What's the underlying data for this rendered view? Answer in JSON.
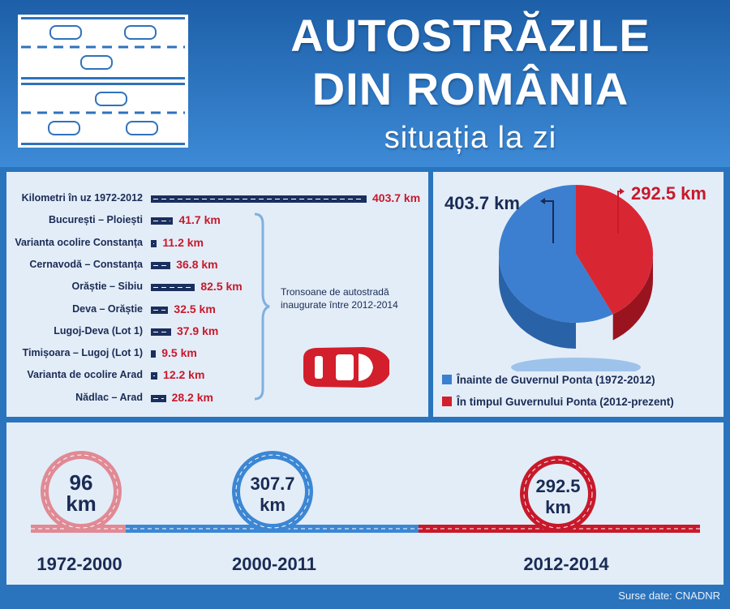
{
  "header": {
    "title_line1": "AUTOSTRĂZILE",
    "title_line2": "DIN ROMÂNIA",
    "subtitle": "situația la zi"
  },
  "colors": {
    "blue": "#3c7fd0",
    "red": "#d21f2b",
    "navy": "#1a2b55",
    "pink": "#e08a95"
  },
  "chart_data": [
    {
      "type": "bar",
      "orientation": "horizontal",
      "categories": [
        "Kilometri în uz 1972-2012",
        "București – Ploiești",
        "Varianta ocolire Constanța",
        "Cernavodă – Constanța",
        "Orăștie – Sibiu",
        "Deva – Orăștie",
        "Lugoj-Deva (Lot 1)",
        "Timișoara – Lugoj (Lot 1)",
        "Varianta de ocolire Arad",
        "Nădlac – Arad"
      ],
      "values": [
        403.7,
        41.7,
        11.2,
        36.8,
        82.5,
        32.5,
        37.9,
        9.5,
        12.2,
        28.2
      ],
      "value_labels": [
        "403.7 km",
        "41.7 km",
        "11.2 km",
        "36.8 km",
        "82.5 km",
        "32.5 km",
        "37.9 km",
        "9.5 km",
        "12.2 km",
        "28.2 km"
      ],
      "annotation": "Tronsoane de autostradă inaugurate între 2012-2014"
    },
    {
      "type": "pie",
      "values": [
        403.7,
        292.5
      ],
      "value_labels": [
        "403.7 km",
        "292.5 km"
      ],
      "legend": [
        "Înainte de Guvernul Ponta (1972-2012)",
        "În timpul Guvernului Ponta (2012-prezent)"
      ],
      "legend_placement": "bottom"
    },
    {
      "type": "timeline",
      "periods": [
        "1972-2000",
        "2000-2011",
        "2012-2014"
      ],
      "values": [
        96,
        307.7,
        292.5
      ],
      "value_labels": [
        "96",
        "307.7",
        "292.5"
      ],
      "unit": "km"
    }
  ],
  "footer": {
    "source": "Surse date: CNADNR"
  }
}
